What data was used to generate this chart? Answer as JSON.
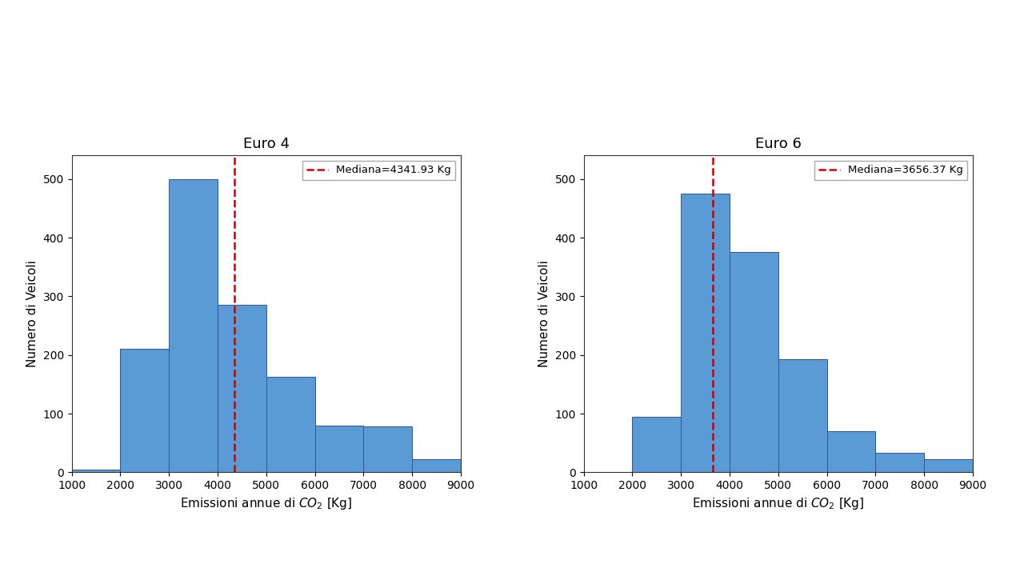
{
  "euro4": {
    "title": "Euro 4",
    "median": 4341.93,
    "median_label": "Mediana=4341.93 Kg",
    "bin_heights": [
      5,
      210,
      500,
      285,
      163,
      80,
      78,
      22
    ],
    "bins": [
      1000,
      2000,
      3000,
      4000,
      5000,
      6000,
      7000,
      8000,
      9000
    ]
  },
  "euro6": {
    "title": "Euro 6",
    "median": 3656.37,
    "median_label": "Mediana=3656.37 Kg",
    "bin_heights": [
      0,
      95,
      475,
      375,
      193,
      70,
      33,
      22
    ],
    "bins": [
      1000,
      2000,
      3000,
      4000,
      5000,
      6000,
      7000,
      8000,
      9000
    ]
  },
  "bar_color": "#5B9BD5",
  "bar_edgecolor": "#2F5597",
  "median_line_color": "#CC0000",
  "xlabel": "Emissioni annue di $CO_2$ [Kg]",
  "ylabel": "Numero di Veicoli",
  "xlim": [
    1000,
    9000
  ],
  "ylim": [
    0,
    540
  ],
  "xticks": [
    1000,
    2000,
    3000,
    4000,
    5000,
    6000,
    7000,
    8000,
    9000
  ],
  "yticks": [
    0,
    100,
    200,
    300,
    400,
    500
  ],
  "background_color": "#ffffff",
  "figure_background": "#ffffff",
  "title_fontsize": 13,
  "label_fontsize": 11,
  "tick_fontsize": 10
}
